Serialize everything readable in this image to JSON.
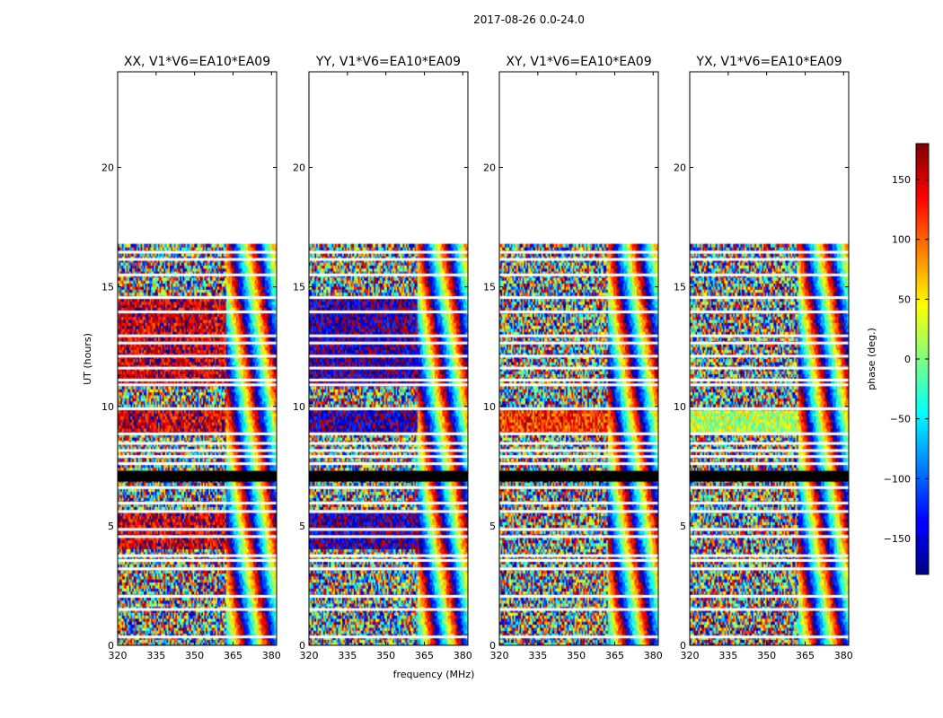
{
  "chart_data": {
    "type": "heatmap",
    "title": "2017-08-26 0.0-24.0",
    "xlabel": "frequency (MHz)",
    "ylabel": "UT (hours)",
    "xlim": [
      320,
      382
    ],
    "ylim": [
      0,
      24
    ],
    "xticks": [
      "320",
      "335",
      "350",
      "365",
      "380"
    ],
    "xtick_values": [
      320,
      335,
      350,
      365,
      380
    ],
    "yticks": [
      "0",
      "5",
      "10",
      "15",
      "20"
    ],
    "ytick_values": [
      0,
      5,
      10,
      15,
      20
    ],
    "data_end_hour": 16.7,
    "gap_hours": [
      0.35,
      1.5,
      2.05,
      3.2,
      3.55,
      3.75,
      4.55,
      4.85,
      5.6,
      5.95,
      6.6,
      7.6,
      7.9,
      8.15,
      8.45,
      8.85,
      9.9,
      10.9,
      11.1,
      11.6,
      12.1,
      12.65,
      12.95,
      13.95,
      14.55,
      15.5,
      16.15,
      16.45
    ],
    "flagged_band_hours": [
      6.85,
      7.3
    ],
    "panels": [
      {
        "title": "XX, V1*V6=EA10*EA09",
        "polarization": "XX",
        "coherent_bias_phase_deg": 150,
        "coherent_bands": [
          [
            8.9,
            9.9
          ],
          [
            10.9,
            14.5
          ],
          [
            4.0,
            5.5
          ]
        ]
      },
      {
        "title": "YY, V1*V6=EA10*EA09",
        "polarization": "YY",
        "coherent_bias_phase_deg": -160,
        "coherent_bands": [
          [
            8.9,
            9.9
          ],
          [
            10.9,
            14.5
          ],
          [
            4.0,
            5.5
          ]
        ]
      },
      {
        "title": "XY, V1*V6=EA10*EA09",
        "polarization": "XY",
        "coherent_bias_phase_deg": 120,
        "coherent_bands": [
          [
            8.9,
            9.9
          ]
        ]
      },
      {
        "title": "YX, V1*V6=EA10*EA09",
        "polarization": "YX",
        "coherent_bias_phase_deg": 20,
        "coherent_bands": [
          [
            8.9,
            9.9
          ]
        ]
      }
    ],
    "colorbar": {
      "label": "phase (deg.)",
      "range": [
        -180,
        180
      ],
      "ticks": [
        "150",
        "100",
        "50",
        "0",
        "−50",
        "−100",
        "−150"
      ],
      "tick_values": [
        150,
        100,
        50,
        0,
        -50,
        -100,
        -150
      ],
      "colormap": "jet"
    }
  }
}
